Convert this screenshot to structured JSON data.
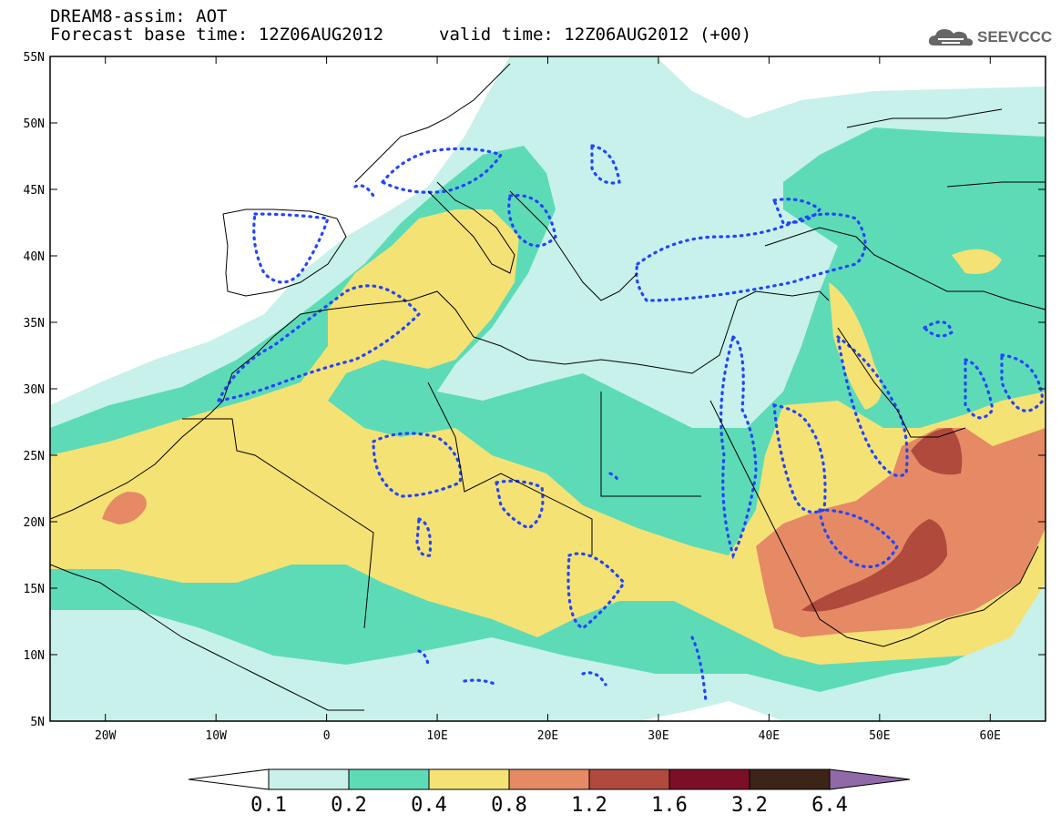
{
  "title": {
    "line1": "DREAM8-assim: AOT",
    "line2": "Forecast base time: 12Z06AUG2012",
    "line2b": "valid time: 12Z06AUG2012 (+00)"
  },
  "logo": {
    "text": "SEEVCCC",
    "icon": "cloud-icon"
  },
  "map": {
    "lat_labels": [
      "55N",
      "50N",
      "45N",
      "40N",
      "35N",
      "30N",
      "25N",
      "20N",
      "15N",
      "10N",
      "5N"
    ],
    "lon_labels": [
      "20W",
      "10W",
      "0",
      "10E",
      "20E",
      "30E",
      "40E",
      "50E",
      "60E"
    ],
    "lat_range": [
      5,
      55
    ],
    "lon_range": [
      -25,
      65
    ]
  },
  "colorbar": {
    "labels": [
      "0.1",
      "0.2",
      "0.4",
      "0.8",
      "1.2",
      "1.6",
      "3.2",
      "6.4"
    ],
    "colors": [
      "#ffffff",
      "#c7f1ea",
      "#5ddbb7",
      "#f5e275",
      "#e58a65",
      "#b04a3d",
      "#7a0f27",
      "#3c2416",
      "#8f69a8"
    ]
  },
  "colors": {
    "c1": "#c7f1ea",
    "c2": "#5ddbb7",
    "c3": "#f5e275",
    "c4": "#e58a65",
    "c5": "#b04a3d",
    "contour": "#2244ff"
  }
}
